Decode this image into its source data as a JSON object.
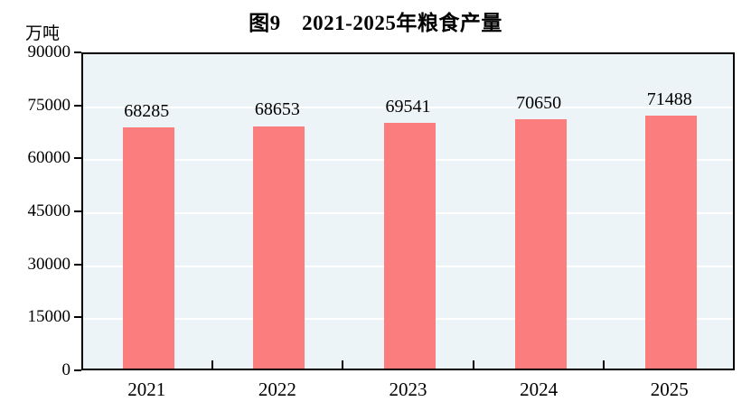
{
  "chart_data": {
    "type": "bar",
    "title": "图9　2021-2025年粮食产量",
    "unit_label": "万吨",
    "categories": [
      "2021",
      "2022",
      "2023",
      "2024",
      "2025"
    ],
    "values": [
      68285,
      68653,
      69541,
      70650,
      71488
    ],
    "data_labels": [
      "68285",
      "68653",
      "69541",
      "70650",
      "71488"
    ],
    "xlabel": "",
    "ylabel": "万吨",
    "ylim": [
      0,
      90000
    ],
    "ytick_interval": 15000,
    "ytick_labels": [
      "0",
      "15000",
      "30000",
      "45000",
      "60000",
      "75000",
      "90000"
    ],
    "grid": "horizontal",
    "legend": "none",
    "colors": {
      "bar_fill": "#FC7D7D",
      "plot_background": "#EDF4F7",
      "gridline": "#FFFFFF",
      "axis": "#000000",
      "text": "#000000",
      "page_background": "#FFFFFF"
    }
  }
}
